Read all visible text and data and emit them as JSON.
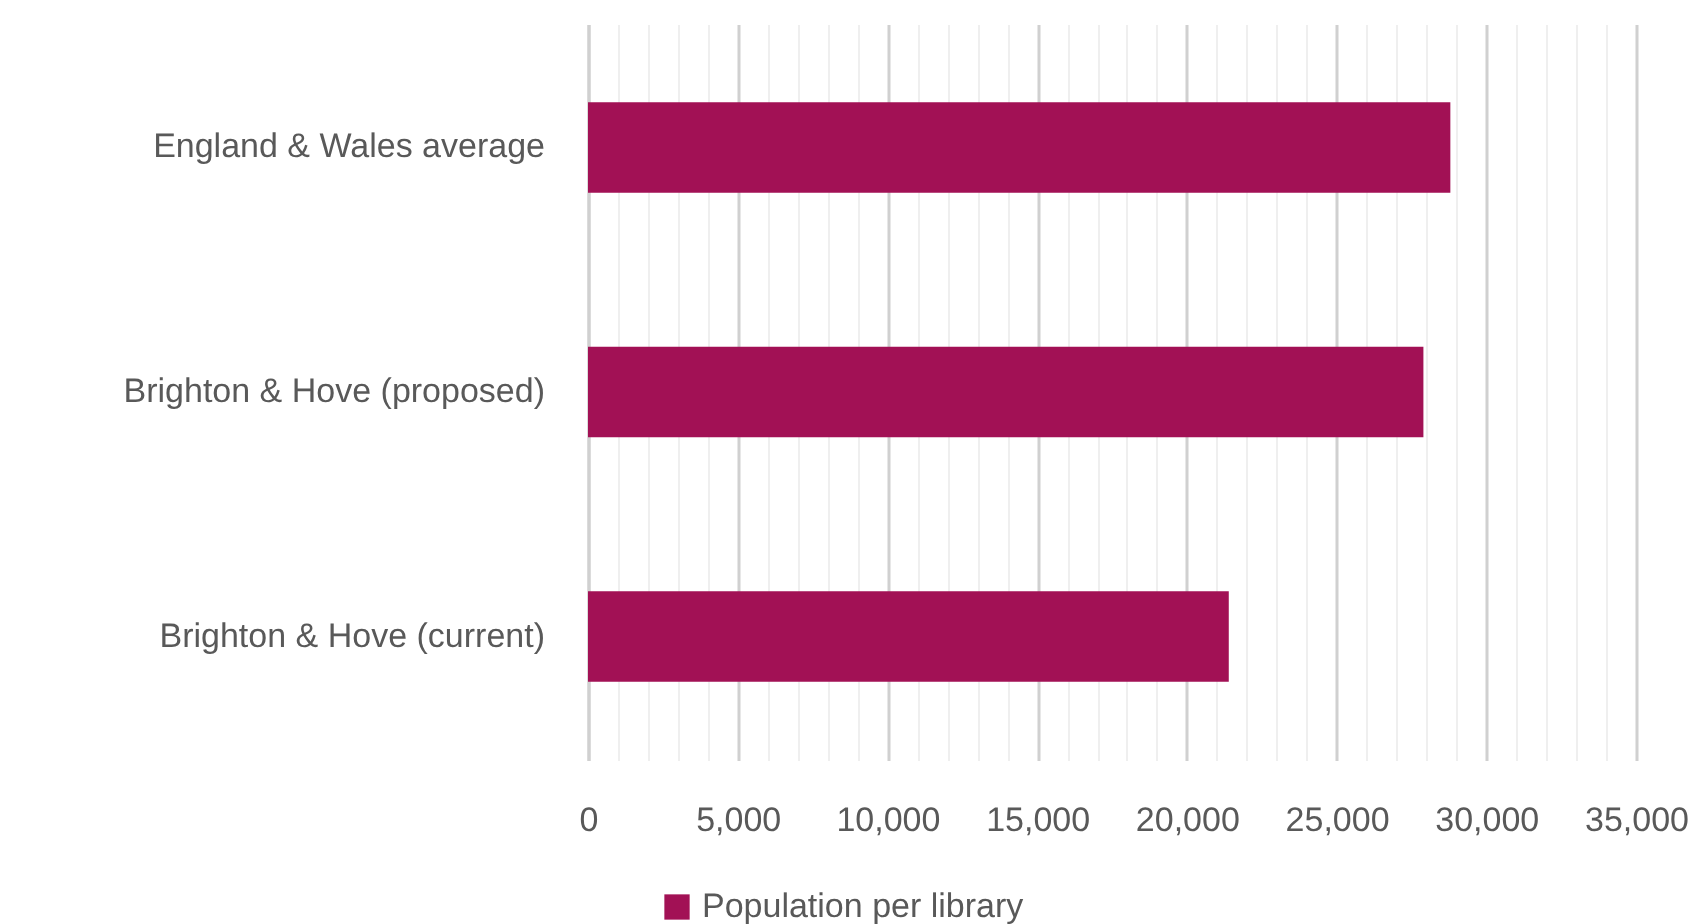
{
  "chart_data": {
    "type": "bar",
    "orientation": "horizontal",
    "categories": [
      "England & Wales average",
      "Brighton & Hove (proposed)",
      "Brighton & Hove (current)"
    ],
    "series": [
      {
        "name": "Population per library",
        "color": "#a21155",
        "values": [
          28800,
          27900,
          21400
        ]
      }
    ],
    "xlim": [
      0,
      35000
    ],
    "xticks": [
      0,
      {
        "value": 1000,
        "label": null
      },
      {
        "value": 2000,
        "label": null
      },
      {
        "value": 3000,
        "label": null
      },
      {
        "value": 4000,
        "label": null
      },
      {
        "value": 5000,
        "label": "5,000"
      },
      {
        "value": 6000,
        "label": null
      },
      {
        "value": 7000,
        "label": null
      },
      {
        "value": 8000,
        "label": null
      },
      {
        "value": 9000,
        "label": null
      },
      {
        "value": 10000,
        "label": "10,000"
      },
      {
        "value": 11000,
        "label": null
      },
      {
        "value": 12000,
        "label": null
      },
      {
        "value": 13000,
        "label": null
      },
      {
        "value": 14000,
        "label": null
      },
      {
        "value": 15000,
        "label": "15,000"
      },
      {
        "value": 16000,
        "label": null
      },
      {
        "value": 17000,
        "label": null
      },
      {
        "value": 18000,
        "label": null
      },
      {
        "value": 19000,
        "label": null
      },
      {
        "value": 20000,
        "label": "20,000"
      },
      {
        "value": 21000,
        "label": null
      },
      {
        "value": 22000,
        "label": null
      },
      {
        "value": 23000,
        "label": null
      },
      {
        "value": 24000,
        "label": null
      },
      {
        "value": 25000,
        "label": "25,000"
      },
      {
        "value": 26000,
        "label": null
      },
      {
        "value": 27000,
        "label": null
      },
      {
        "value": 28000,
        "label": null
      },
      {
        "value": 29000,
        "label": null
      },
      {
        "value": 30000,
        "label": "30,000"
      },
      {
        "value": 31000,
        "label": null
      },
      {
        "value": 32000,
        "label": null
      },
      {
        "value": 33000,
        "label": null
      },
      {
        "value": 34000,
        "label": null
      },
      {
        "value": 35000,
        "label": "35,000"
      }
    ],
    "grid": "x",
    "legend": "bottom"
  }
}
